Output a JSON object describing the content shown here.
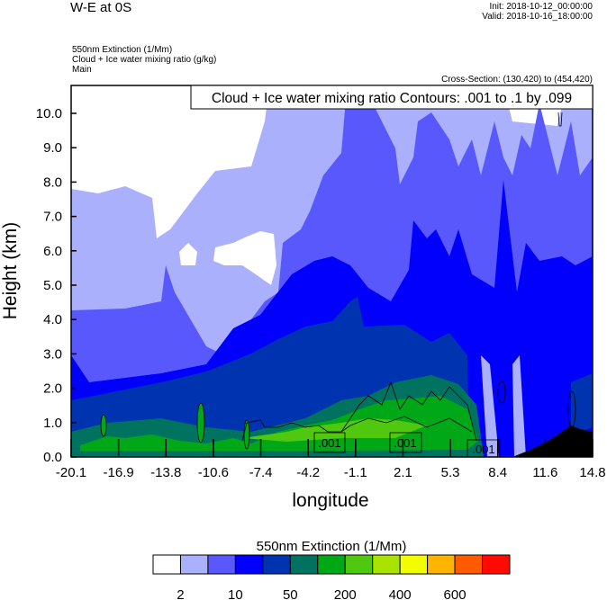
{
  "header": {
    "title": "W-E at 0S",
    "init": "Init: 2018-10-12_00:00:00",
    "valid": "Valid: 2018-10-16_18:00:00",
    "fields": [
      "550nm Extinction   (1/Mm)",
      "Cloud + Ice water mixing ratio   (g/kg)",
      "Main"
    ],
    "cross_section": "Cross-Section: (130,420) to (454,420)"
  },
  "chart_data": {
    "type": "contour",
    "title": "W-E at 0S",
    "contour_title": "Cloud + Ice water mixing ratio Contours: .001 to .1 by .099",
    "xlabel": "longitude",
    "ylabel": "Height (km)",
    "xlim": [
      -20.1,
      14.8
    ],
    "ylim": [
      0,
      10.8
    ],
    "x_ticks": [
      "-20.1",
      "-16.9",
      "-13.8",
      "-10.6",
      "-7.4",
      "-4.2",
      "-1.1",
      "2.1",
      "5.3",
      "8.4",
      "11.6",
      "14.8"
    ],
    "y_ticks": [
      "0.0",
      "1.0",
      "2.0",
      "3.0",
      "4.0",
      "5.0",
      "6.0",
      "7.0",
      "8.0",
      "9.0",
      "10.0"
    ],
    "contour_labels": [
      ".001",
      ".001",
      ".001"
    ],
    "colorbar": {
      "title": "550nm Extinction  (1/Mm)",
      "colors": [
        "#ffffff",
        "#aab0fc",
        "#5858fc",
        "#0000fc",
        "#0033b0",
        "#007260",
        "#00a818",
        "#50c810",
        "#a8e400",
        "#f4fc00",
        "#ffb400",
        "#ff5a00",
        "#ff0a00"
      ],
      "labels": [
        "2",
        "10",
        "50",
        "200",
        "400",
        "600"
      ]
    }
  }
}
